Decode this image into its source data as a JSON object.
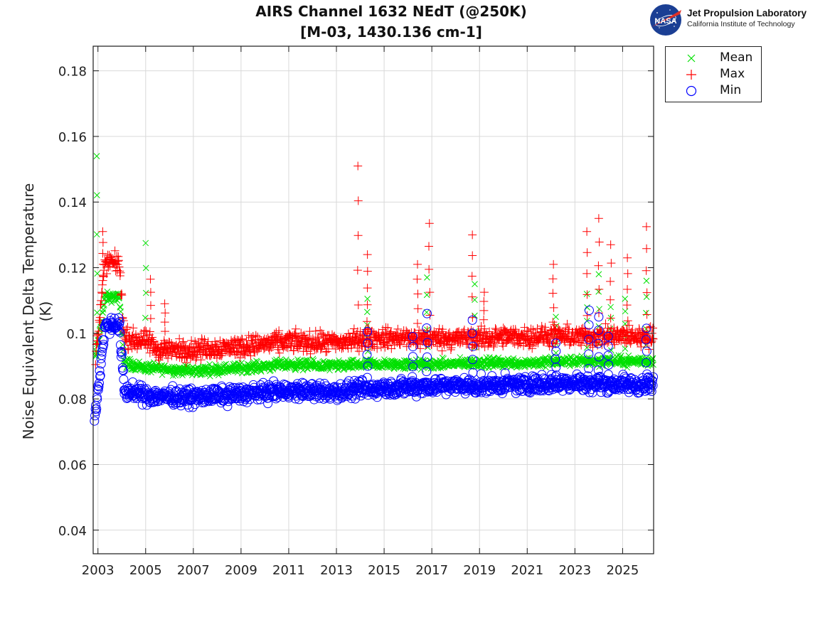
{
  "title_lines": [
    "AIRS Channel 1632 NEdT (@250K)",
    "[M-03, 1430.136 cm-1]"
  ],
  "logo": {
    "icon": "nasa-meatball-icon",
    "badge_text": "NASA",
    "line1": "Jet Propulsion Laboratory",
    "line2": "California Institute of Technology"
  },
  "chart_data": {
    "type": "scatter",
    "title": "AIRS Channel 1632 NEdT (@250K) [M-03, 1430.136 cm-1]",
    "xlabel": "",
    "ylabel": "Noise Equivalent Delta Temperature (K)",
    "xlim": [
      2002.8,
      2026.3
    ],
    "ylim": [
      0.0328,
      0.1875
    ],
    "xticks": [
      2003,
      2005,
      2007,
      2009,
      2011,
      2013,
      2015,
      2017,
      2019,
      2021,
      2023,
      2025
    ],
    "xtick_labels": [
      "2003",
      "2005",
      "2007",
      "2009",
      "2011",
      "2013",
      "2015",
      "2017",
      "2019",
      "2021",
      "2023",
      "2025"
    ],
    "yticks": [
      0.04,
      0.06,
      0.08,
      0.1,
      0.12,
      0.14,
      0.16,
      0.18
    ],
    "ytick_labels": [
      "0.04",
      "0.06",
      "0.08",
      "0.1",
      "0.12",
      "0.14",
      "0.16",
      "0.18"
    ],
    "grid": true,
    "legend_position": "outside-top-right",
    "series": [
      {
        "name": "Mean",
        "marker": "x",
        "color": "#00e000",
        "baseline": [
          [
            2002.9,
            0.092
          ],
          [
            2003.3,
            0.111
          ],
          [
            2003.9,
            0.111
          ],
          [
            2004.1,
            0.091
          ],
          [
            2005.0,
            0.0895
          ],
          [
            2007.0,
            0.0885
          ],
          [
            2009.0,
            0.0895
          ],
          [
            2011.0,
            0.0905
          ],
          [
            2013.0,
            0.09
          ],
          [
            2014.3,
            0.0905
          ],
          [
            2017.0,
            0.0905
          ],
          [
            2019.0,
            0.091
          ],
          [
            2021.0,
            0.091
          ],
          [
            2023.0,
            0.0915
          ],
          [
            2026.3,
            0.0915
          ]
        ],
        "spread": 0.0015,
        "outliers": [
          [
            2002.95,
            0.154
          ],
          [
            2005.0,
            0.1275
          ],
          [
            2014.3,
            0.1105
          ],
          [
            2016.8,
            0.117
          ],
          [
            2018.8,
            0.115
          ],
          [
            2023.5,
            0.112
          ],
          [
            2024.0,
            0.118
          ],
          [
            2024.5,
            0.108
          ],
          [
            2025.1,
            0.1105
          ],
          [
            2026.0,
            0.116
          ],
          [
            2022.2,
            0.105
          ]
        ]
      },
      {
        "name": "Max",
        "marker": "+",
        "color": "#ff0000",
        "baseline": [
          [
            2002.9,
            0.093
          ],
          [
            2003.3,
            0.1215
          ],
          [
            2003.9,
            0.1215
          ],
          [
            2004.1,
            0.0985
          ],
          [
            2005.0,
            0.0975
          ],
          [
            2005.5,
            0.095
          ],
          [
            2007.0,
            0.095
          ],
          [
            2009.0,
            0.096
          ],
          [
            2011.0,
            0.0975
          ],
          [
            2013.0,
            0.097
          ],
          [
            2014.3,
            0.0985
          ],
          [
            2017.0,
            0.0985
          ],
          [
            2019.0,
            0.0985
          ],
          [
            2021.0,
            0.099
          ],
          [
            2023.0,
            0.099
          ],
          [
            2026.3,
            0.099
          ]
        ],
        "spread": 0.003,
        "outliers": [
          [
            2003.2,
            0.131
          ],
          [
            2005.2,
            0.1165
          ],
          [
            2005.8,
            0.109
          ],
          [
            2013.9,
            0.151
          ],
          [
            2014.3,
            0.124
          ],
          [
            2016.4,
            0.121
          ],
          [
            2016.9,
            0.1335
          ],
          [
            2018.7,
            0.13
          ],
          [
            2019.2,
            0.1125
          ],
          [
            2022.1,
            0.121
          ],
          [
            2023.5,
            0.131
          ],
          [
            2024.0,
            0.135
          ],
          [
            2024.5,
            0.127
          ],
          [
            2025.2,
            0.123
          ],
          [
            2026.0,
            0.1325
          ]
        ]
      },
      {
        "name": "Min",
        "marker": "o",
        "color": "#0000ff",
        "baseline": [
          [
            2002.85,
            0.0755
          ],
          [
            2003.0,
            0.082
          ],
          [
            2003.3,
            0.1025
          ],
          [
            2003.9,
            0.1025
          ],
          [
            2004.1,
            0.0825
          ],
          [
            2005.0,
            0.081
          ],
          [
            2007.0,
            0.0805
          ],
          [
            2009.0,
            0.0815
          ],
          [
            2011.0,
            0.0825
          ],
          [
            2013.0,
            0.082
          ],
          [
            2014.3,
            0.083
          ],
          [
            2017.0,
            0.084
          ],
          [
            2019.0,
            0.084
          ],
          [
            2021.0,
            0.0845
          ],
          [
            2023.0,
            0.085
          ],
          [
            2026.3,
            0.084
          ]
        ],
        "spread": 0.0025,
        "outliers": [
          [
            2014.3,
            0.1005
          ],
          [
            2016.2,
            0.099
          ],
          [
            2016.8,
            0.106
          ],
          [
            2018.7,
            0.104
          ],
          [
            2022.2,
            0.097
          ],
          [
            2023.6,
            0.107
          ],
          [
            2024.0,
            0.105
          ],
          [
            2024.4,
            0.099
          ],
          [
            2026.0,
            0.1015
          ]
        ]
      }
    ]
  }
}
